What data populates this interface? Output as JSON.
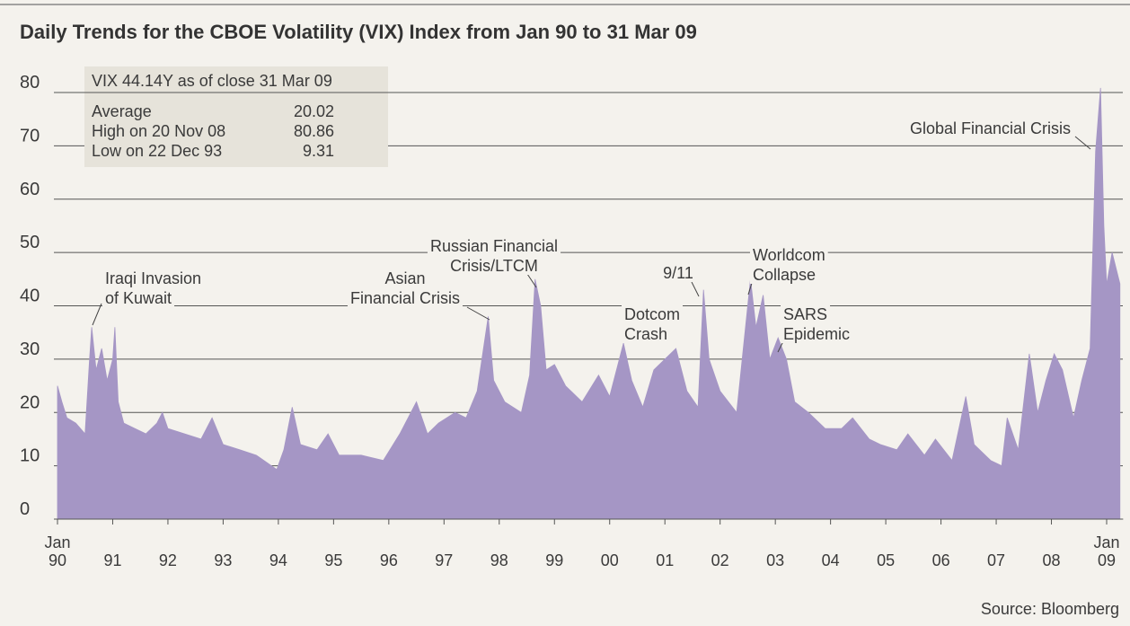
{
  "chart_data": {
    "type": "area",
    "title": "Daily Trends for the CBOE Volatility (VIX) Index from Jan 90 to 31 Mar 09",
    "source": "Source: Bloomberg",
    "color": "#a596c5",
    "grid": true,
    "info_box": {
      "title": "VIX 44.14Y as of close 31 Mar 09",
      "rows": [
        {
          "label": "Average",
          "value": 20.02
        },
        {
          "label": "High on 20 Nov 08",
          "value": 80.86
        },
        {
          "label": "Low on 22 Dec 93",
          "value": 9.31
        }
      ]
    },
    "annotations": [
      {
        "lines": [
          "Iraqi Invasion",
          "of Kuwait"
        ]
      },
      {
        "lines": [
          "Asian",
          "Financial Crisis"
        ]
      },
      {
        "lines": [
          "Russian Financial",
          "Crisis/LTCM"
        ]
      },
      {
        "lines": [
          "9/11"
        ]
      },
      {
        "lines": [
          "Dotcom",
          "Crash"
        ]
      },
      {
        "lines": [
          "Worldcom",
          "Collapse"
        ]
      },
      {
        "lines": [
          "SARS",
          "Epidemic"
        ]
      },
      {
        "lines": [
          "Global Financial Crisis"
        ]
      }
    ],
    "xlim": [
      1990,
      2009.25
    ],
    "xticks": [
      {
        "value": 1990,
        "label": "Jan 90"
      },
      {
        "value": 1991,
        "label": "91"
      },
      {
        "value": 1992,
        "label": "92"
      },
      {
        "value": 1993,
        "label": "93"
      },
      {
        "value": 1994,
        "label": "94"
      },
      {
        "value": 1995,
        "label": "95"
      },
      {
        "value": 1996,
        "label": "96"
      },
      {
        "value": 1997,
        "label": "97"
      },
      {
        "value": 1998,
        "label": "98"
      },
      {
        "value": 1999,
        "label": "99"
      },
      {
        "value": 2000,
        "label": "00"
      },
      {
        "value": 2001,
        "label": "01"
      },
      {
        "value": 2002,
        "label": "02"
      },
      {
        "value": 2003,
        "label": "03"
      },
      {
        "value": 2004,
        "label": "04"
      },
      {
        "value": 2005,
        "label": "05"
      },
      {
        "value": 2006,
        "label": "06"
      },
      {
        "value": 2007,
        "label": "07"
      },
      {
        "value": 2008,
        "label": "08"
      },
      {
        "value": 2009,
        "label": "Jan 09"
      }
    ],
    "ylim": [
      0,
      80
    ],
    "yticks": [
      0,
      10,
      20,
      30,
      40,
      50,
      60,
      70,
      80
    ],
    "x": [
      1990.0,
      1990.08,
      1990.17,
      1990.33,
      1990.5,
      1990.58,
      1990.62,
      1990.7,
      1990.8,
      1990.9,
      1991.0,
      1991.04,
      1991.1,
      1991.2,
      1991.4,
      1991.6,
      1991.8,
      1991.9,
      1992.0,
      1992.3,
      1992.6,
      1992.8,
      1993.0,
      1993.3,
      1993.6,
      1993.97,
      1994.1,
      1994.25,
      1994.4,
      1994.7,
      1994.9,
      1995.1,
      1995.5,
      1995.9,
      1996.2,
      1996.5,
      1996.7,
      1996.9,
      1997.2,
      1997.4,
      1997.6,
      1997.8,
      1997.9,
      1998.1,
      1998.4,
      1998.55,
      1998.65,
      1998.75,
      1998.85,
      1999.0,
      1999.2,
      1999.5,
      1999.8,
      2000.0,
      2000.25,
      2000.4,
      2000.6,
      2000.8,
      2001.0,
      2001.2,
      2001.4,
      2001.6,
      2001.7,
      2001.8,
      2002.0,
      2002.3,
      2002.55,
      2002.65,
      2002.78,
      2002.9,
      2003.05,
      2003.2,
      2003.35,
      2003.6,
      2003.9,
      2004.2,
      2004.4,
      2004.7,
      2004.9,
      2005.2,
      2005.4,
      2005.7,
      2005.9,
      2006.2,
      2006.45,
      2006.6,
      2006.9,
      2007.1,
      2007.2,
      2007.4,
      2007.6,
      2007.75,
      2007.9,
      2008.05,
      2008.2,
      2008.4,
      2008.55,
      2008.7,
      2008.8,
      2008.89,
      2008.95,
      2009.0,
      2009.1,
      2009.24
    ],
    "values": [
      25,
      22,
      19,
      18,
      16,
      30,
      36,
      28,
      32,
      26,
      30,
      36,
      22,
      18,
      17,
      16,
      18,
      20,
      17,
      16,
      15,
      19,
      14,
      13,
      12,
      9.31,
      13,
      21,
      14,
      13,
      16,
      12,
      12,
      11,
      16,
      22,
      16,
      18,
      20,
      19,
      24,
      38,
      26,
      22,
      20,
      27,
      45,
      40,
      28,
      29,
      25,
      22,
      27,
      23,
      33,
      26,
      21,
      28,
      30,
      32,
      24,
      21,
      43,
      30,
      24,
      20,
      45,
      36,
      42,
      30,
      34,
      30,
      22,
      20,
      17,
      17,
      19,
      15,
      14,
      13,
      16,
      12,
      15,
      11,
      23,
      14,
      11,
      10,
      19,
      13,
      31,
      20,
      26,
      31,
      28,
      19,
      26,
      32,
      69,
      80.86,
      55,
      44,
      50,
      44.14
    ]
  }
}
